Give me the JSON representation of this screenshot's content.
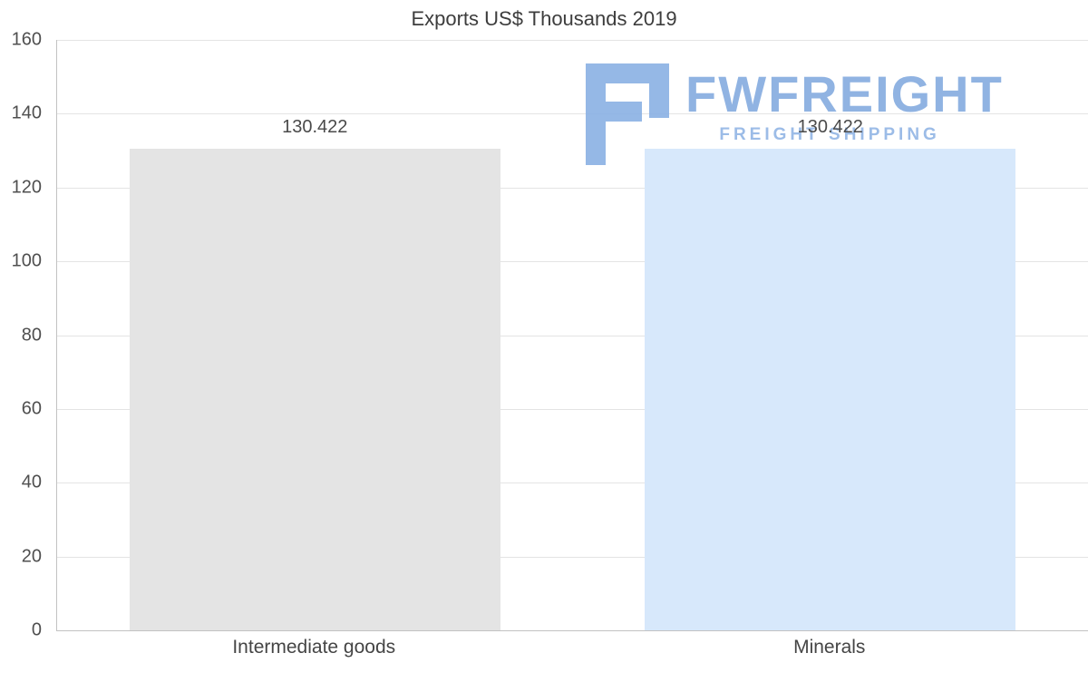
{
  "chart_data": {
    "type": "bar",
    "title": "Exports US$ Thousands 2019",
    "categories": [
      "Intermediate goods",
      "Minerals"
    ],
    "values": [
      130.422,
      130.422
    ],
    "value_labels": [
      "130.422",
      "130.422"
    ],
    "bar_colors": [
      "#e4e4e4",
      "#d7e8fb"
    ],
    "xlabel": "",
    "ylabel": "",
    "ylim": [
      0,
      160
    ],
    "yticks": [
      0,
      20,
      40,
      60,
      80,
      100,
      120,
      140,
      160
    ],
    "grid": true,
    "legend_position": "none"
  },
  "watermark": {
    "brand": "FWFREIGHT",
    "tagline": "FREIGHT SHIPPING",
    "color": "#8ab1e4"
  }
}
